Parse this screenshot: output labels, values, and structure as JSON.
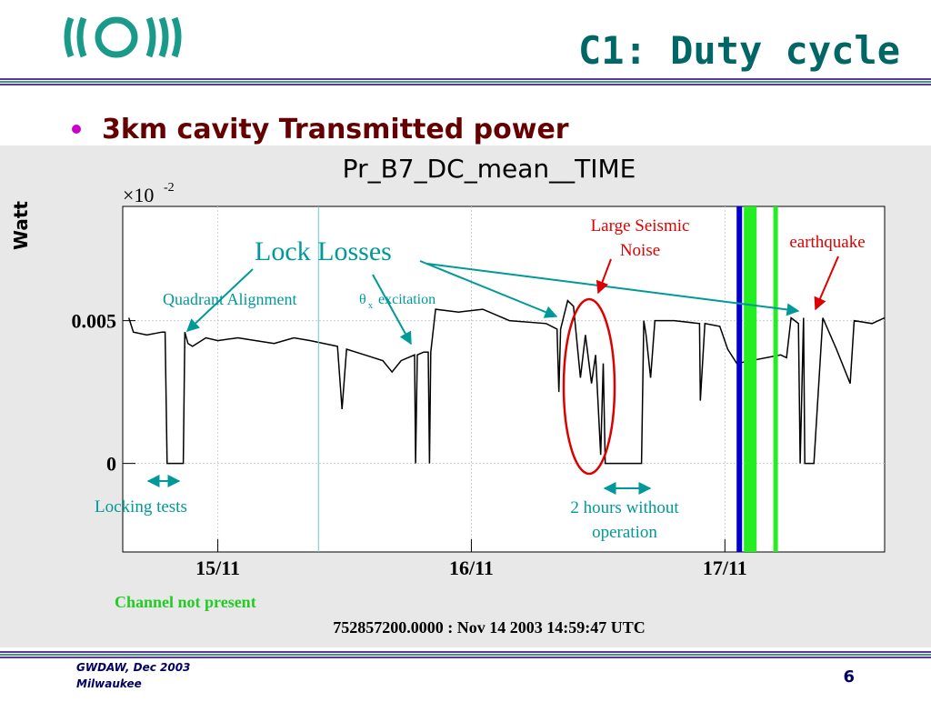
{
  "slide": {
    "title": "C1: Duty cycle",
    "bullet": "3km cavity Transmitted power",
    "footer_lines": [
      "GWDAW, Dec 2003",
      "Milwaukee"
    ],
    "page_number": "6"
  },
  "chart_data": {
    "type": "line",
    "title": "Pr_B7_DC_mean__TIME",
    "y_label": "Watt",
    "y_multiplier": "×10",
    "y_multiplier_exponent": "-2",
    "x": [
      14.649,
      14.667,
      14.72,
      14.78,
      14.792,
      14.8,
      14.81,
      14.85,
      14.864,
      14.87,
      14.882,
      14.9,
      14.953,
      15.0,
      15.079,
      15.15,
      15.222,
      15.3,
      15.365,
      15.472,
      15.49,
      15.508,
      15.58,
      15.651,
      15.687,
      15.723,
      15.776,
      15.78,
      15.787,
      15.812,
      15.83,
      15.835,
      15.84,
      15.859,
      15.95,
      16.045,
      16.15,
      16.295,
      16.338,
      16.345,
      16.352,
      16.38,
      16.403,
      16.43,
      16.45,
      16.474,
      16.49,
      16.51,
      16.52,
      16.528,
      16.6,
      16.671,
      16.68,
      16.689,
      16.707,
      16.724,
      16.8,
      16.9,
      16.903,
      16.921,
      16.98,
      17.011,
      17.047,
      17.22,
      17.243,
      17.261,
      17.29,
      17.297,
      17.31,
      17.315,
      17.351,
      17.386,
      17.44,
      17.494,
      17.51,
      17.58,
      17.63
    ],
    "series": [
      {
        "color": "#000000",
        "values": [
          0.0051,
          0.0046,
          0.0045,
          0.0046,
          0.0046,
          0,
          0,
          0,
          0,
          0.0046,
          0.0042,
          0.0041,
          0.0044,
          0.0043,
          0.0044,
          0.0043,
          0.0042,
          0.0044,
          0.0043,
          0.0041,
          0.0019,
          0.004,
          0.0038,
          0.0036,
          0.0032,
          0.0036,
          0.0038,
          0,
          0.0038,
          0.0039,
          0.0039,
          0,
          0.0039,
          0.0054,
          0.0053,
          0.0054,
          0.005,
          0.0049,
          0.0047,
          0.0025,
          0.0047,
          0.0057,
          0.0055,
          0.003,
          0.0045,
          0.0028,
          0.0038,
          0.0003,
          0.0035,
          0,
          0,
          0,
          0.005,
          0.0045,
          0.003,
          0.005,
          0.005,
          0.0049,
          0.0022,
          0.0049,
          0.0048,
          0.004,
          0.0035,
          0.0038,
          0.0037,
          0.0051,
          0.0049,
          0,
          0.0051,
          0,
          0,
          0.0051,
          0.004,
          0.0028,
          0.005,
          0.0049,
          0.0051
        ]
      }
    ],
    "xlim": [
      14.625,
      17.63
    ],
    "ylim": [
      -0.0031,
      0.009
    ],
    "xticks": [
      {
        "value": 15,
        "label": "15/11"
      },
      {
        "value": 16,
        "label": "16/11"
      },
      {
        "value": 17,
        "label": "17/11"
      }
    ],
    "yticks": [
      0,
      0.005
    ],
    "grid": true,
    "markers": [
      {
        "x": 15.397,
        "color": "#66cccc",
        "width": 1
      },
      {
        "x": 17.057,
        "color": "#0000cc",
        "width": 6
      },
      {
        "x": 17.1,
        "color": "#22ee22",
        "width": 14
      },
      {
        "x": 17.2,
        "color": "#22ee22",
        "width": 5
      }
    ],
    "annotations": {
      "lock_losses": "Lock Losses",
      "quadrant": "Quadrant Alignment",
      "theta_symbol": "θ",
      "theta_subscript": "x",
      "theta_text": "excitation",
      "seismic": [
        "Large Seismic",
        "Noise"
      ],
      "earthquake": "earthquake",
      "locking_tests": "Locking tests",
      "no_operation": [
        "2 hours without",
        "operation"
      ]
    },
    "status": "Channel not present",
    "timestamp": "752857200.0000 : Nov 14 2003 14:59:47 UTC"
  }
}
